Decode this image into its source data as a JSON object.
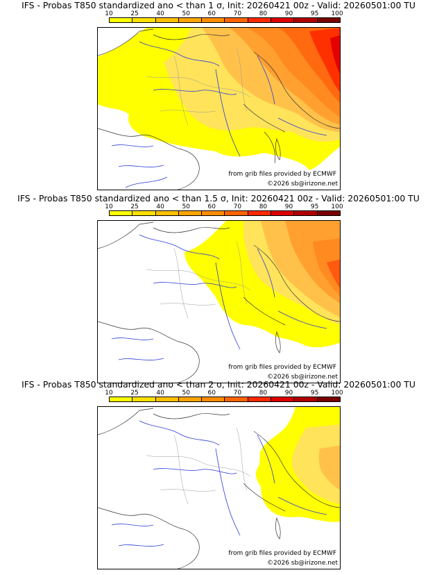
{
  "colorbar": {
    "ticks": [
      "10",
      "25",
      "40",
      "50",
      "60",
      "70",
      "80",
      "90",
      "95",
      "100"
    ],
    "colors": [
      "#ffff00",
      "#ffe000",
      "#ffc000",
      "#ffa500",
      "#ff8c00",
      "#ff6400",
      "#ff2a00",
      "#dd0000",
      "#b00000",
      "#7a0000"
    ]
  },
  "panels": [
    {
      "title": "IFS - Probas T850  standardized ano < than 1 σ, Init: 20260421 00z - Valid: 20260501:00 TU",
      "credit_line1": "from grib files provided by ECMWF",
      "credit_line2": "©2026 sb@irizone.net"
    },
    {
      "title": "IFS - Probas T850  standardized ano < than 1.5 σ, Init: 20260421 00z - Valid: 20260501:00 TU",
      "credit_line1": "from grib files provided by ECMWF",
      "credit_line2": "©2026 sb@irizone.net"
    },
    {
      "title": "IFS - Probas T850  standardized ano < than 2 σ, Init: 20260421 00z - Valid: 20260501:00 TU",
      "credit_line1": "from grib files provided by ECMWF",
      "credit_line2": "©2026 sb@irizone.net"
    }
  ]
}
